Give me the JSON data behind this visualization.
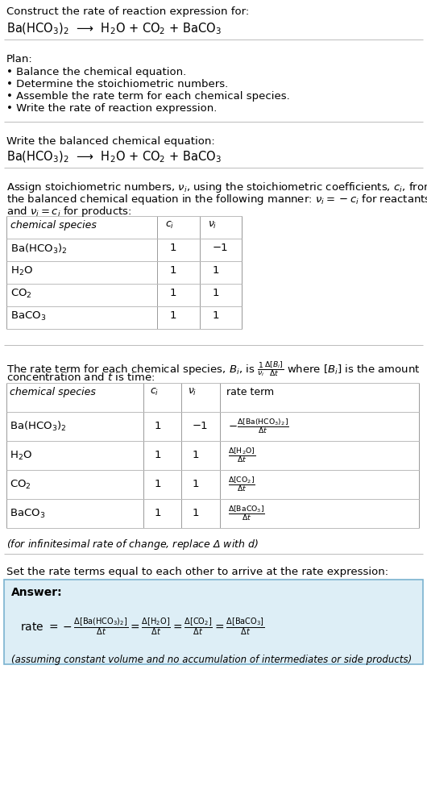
{
  "title_line1": "Construct the rate of reaction expression for:",
  "reaction_eq": "Ba(HCO$_3$)$_2$  ⟶  H$_2$O + CO$_2$ + BaCO$_3$",
  "plan_header": "Plan:",
  "plan_items": [
    "• Balance the chemical equation.",
    "• Determine the stoichiometric numbers.",
    "• Assemble the rate term for each chemical species.",
    "• Write the rate of reaction expression."
  ],
  "balanced_eq_header": "Write the balanced chemical equation:",
  "balanced_eq": "Ba(HCO$_3$)$_2$  ⟶  H$_2$O + CO$_2$ + BaCO$_3$",
  "stoich_text1": "Assign stoichiometric numbers, $\\nu_i$, using the stoichiometric coefficients, $c_i$, from",
  "stoich_text2": "the balanced chemical equation in the following manner: $\\nu_i = -c_i$ for reactants",
  "stoich_text3": "and $\\nu_i = c_i$ for products:",
  "table1_headers": [
    "chemical species",
    "$c_i$",
    "$\\nu_i$"
  ],
  "table1_rows": [
    [
      "Ba(HCO$_3$)$_2$",
      "1",
      "−1"
    ],
    [
      "H$_2$O",
      "1",
      "1"
    ],
    [
      "CO$_2$",
      "1",
      "1"
    ],
    [
      "BaCO$_3$",
      "1",
      "1"
    ]
  ],
  "rate_text1": "The rate term for each chemical species, $B_i$, is $\\frac{1}{\\nu_i}\\frac{\\Delta[B_i]}{\\Delta t}$ where [$B_i$] is the amount",
  "rate_text2": "concentration and $t$ is time:",
  "table2_headers": [
    "chemical species",
    "$c_i$",
    "$\\nu_i$",
    "rate term"
  ],
  "table2_rows": [
    [
      "Ba(HCO$_3$)$_2$",
      "1",
      "−1",
      "$-\\frac{\\Delta[\\mathrm{Ba(HCO_3)_2}]}{\\Delta t}$"
    ],
    [
      "H$_2$O",
      "1",
      "1",
      "$\\frac{\\Delta[\\mathrm{H_2O}]}{\\Delta t}$"
    ],
    [
      "CO$_2$",
      "1",
      "1",
      "$\\frac{\\Delta[\\mathrm{CO_2}]}{\\Delta t}$"
    ],
    [
      "BaCO$_3$",
      "1",
      "1",
      "$\\frac{\\Delta[\\mathrm{BaCO_3}]}{\\Delta t}$"
    ]
  ],
  "infini_note": "(for infinitesimal rate of change, replace Δ with $d$)",
  "set_rate_text": "Set the rate terms equal to each other to arrive at the rate expression:",
  "answer_box_bg": "#ddeef6",
  "answer_box_border": "#7ab3d0",
  "answer_label": "Answer:",
  "rate_expression": "rate $= -\\frac{\\Delta[\\mathrm{Ba(HCO_3)_2}]}{\\Delta t} = \\frac{\\Delta[\\mathrm{H_2O}]}{\\Delta t} = \\frac{\\Delta[\\mathrm{CO_2}]}{\\Delta t} = \\frac{\\Delta[\\mathrm{BaCO_3}]}{\\Delta t}$",
  "assumption_note": "(assuming constant volume and no accumulation of intermediates or side products)",
  "bg_color": "#ffffff",
  "divider_color": "#bbbbbb",
  "table_line_color": "#999999"
}
